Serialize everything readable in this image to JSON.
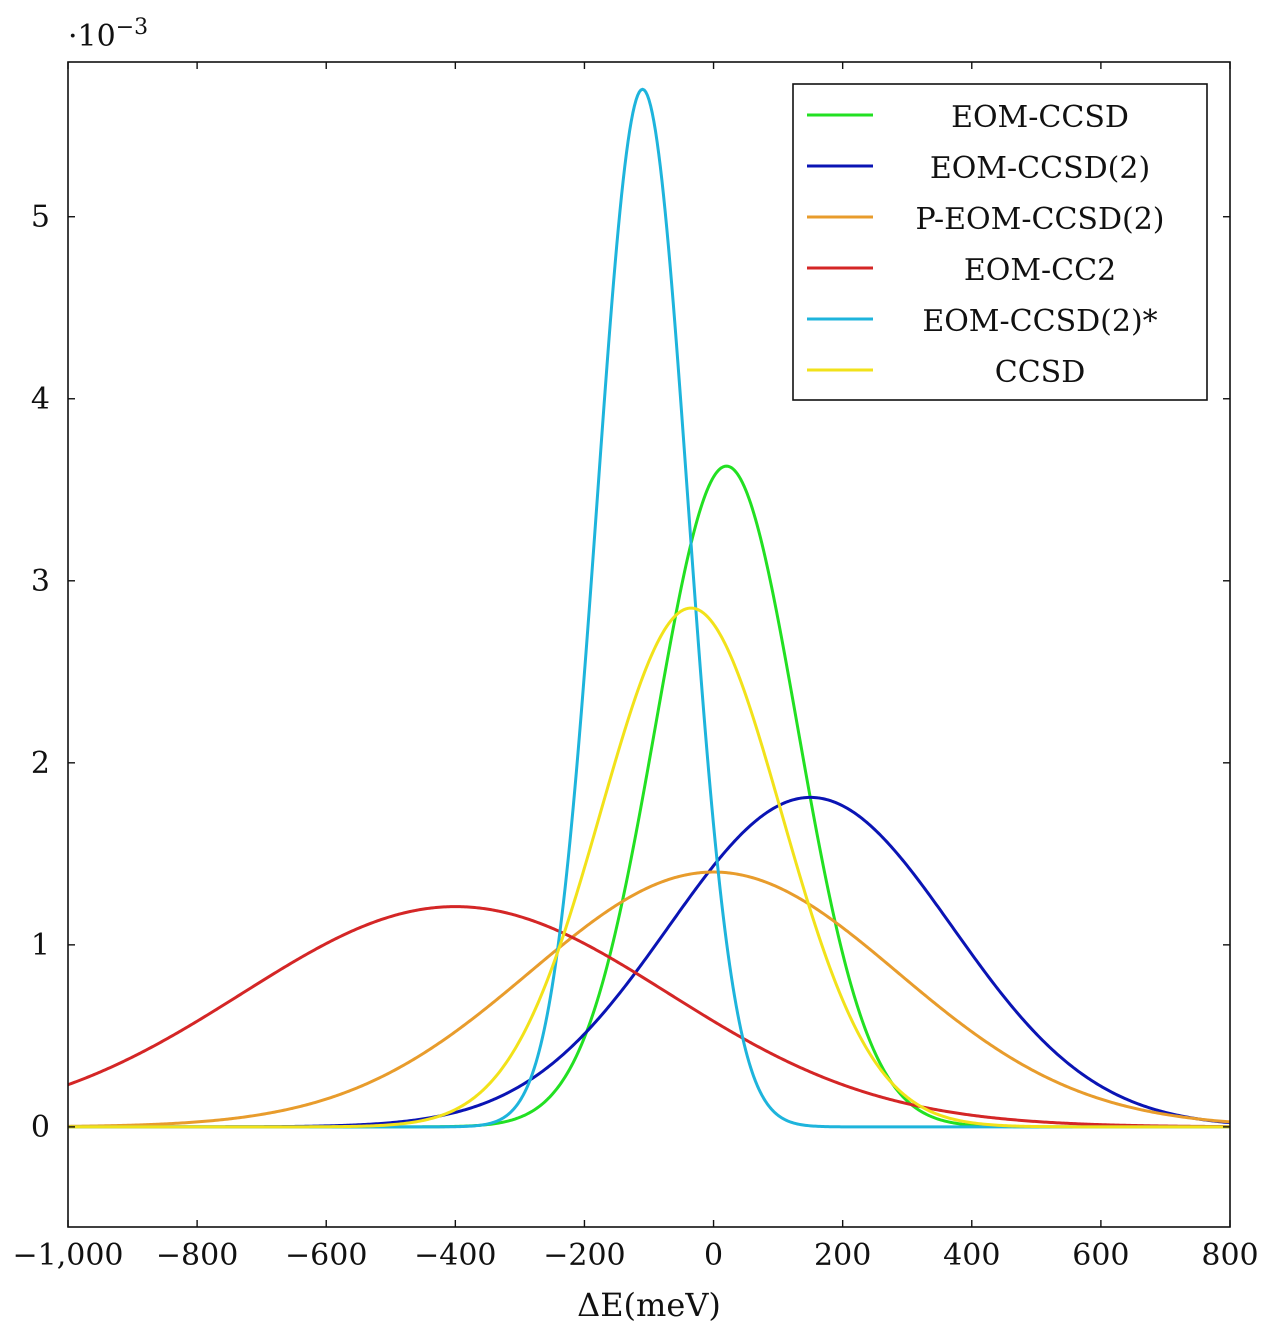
{
  "chart_data": {
    "type": "line",
    "title": "",
    "xlabel": "ΔE(meV)",
    "ylabel": "",
    "y_multiplier_base": "·10",
    "y_multiplier_exp": "−3",
    "xlim": [
      -1000,
      800
    ],
    "ylim": [
      -0.55,
      5.85
    ],
    "x_ticks": [
      -1000,
      -800,
      -600,
      -400,
      -200,
      0,
      200,
      400,
      600,
      800
    ],
    "x_tick_labels": [
      "−1,000",
      "−800",
      "−600",
      "−400",
      "−200",
      "0",
      "200",
      "400",
      "600",
      "800"
    ],
    "y_ticks": [
      0,
      1,
      2,
      3,
      4,
      5
    ],
    "y_tick_labels": [
      "0",
      "1",
      "2",
      "3",
      "4",
      "5"
    ],
    "grid": false,
    "legend_position": "top-right",
    "series": [
      {
        "name": "EOM-CCSD",
        "color": "#22e022",
        "distribution": "gaussian",
        "mean": 20,
        "sd": 110,
        "peak": 3.63
      },
      {
        "name": "EOM-CCSD(2)",
        "color": "#0a14b4",
        "distribution": "gaussian",
        "mean": 150,
        "sd": 220,
        "peak": 1.81
      },
      {
        "name": "P-EOM-CCSD(2)",
        "color": "#e89c2c",
        "distribution": "gaussian",
        "mean": 0,
        "sd": 285,
        "peak": 1.4
      },
      {
        "name": "EOM-CC2",
        "color": "#d42626",
        "distribution": "gaussian",
        "mean": -400,
        "sd": 330,
        "peak": 1.21
      },
      {
        "name": "EOM-CCSD(2)*",
        "color": "#1eb4dc",
        "distribution": "gaussian",
        "mean": -110,
        "sd": 70,
        "peak": 5.7
      },
      {
        "name": "CCSD",
        "color": "#f2e21a",
        "distribution": "gaussian",
        "mean": -35,
        "sd": 140,
        "peak": 2.85
      }
    ]
  }
}
